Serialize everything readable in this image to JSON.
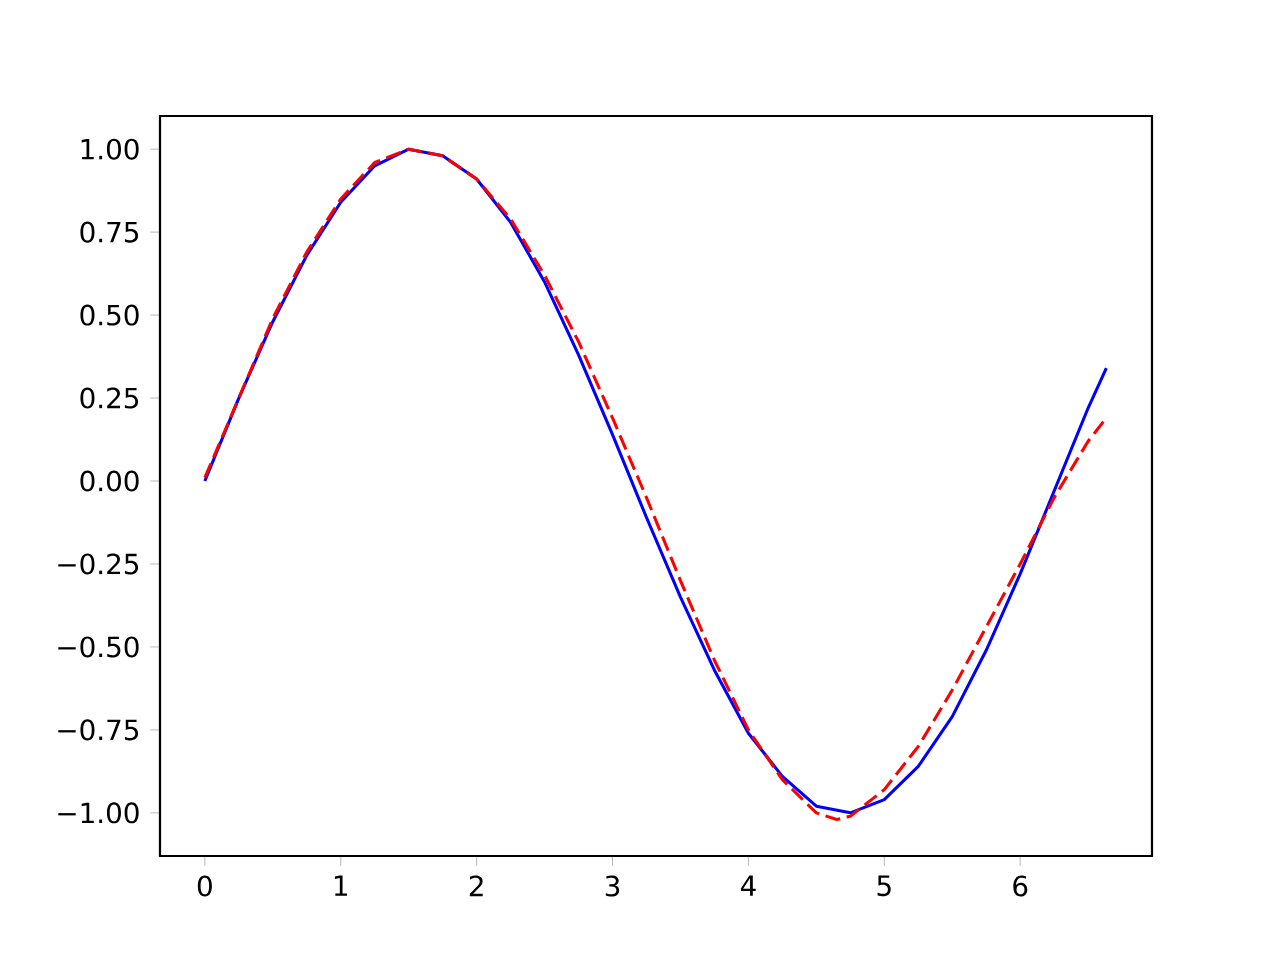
{
  "chart_data": {
    "type": "line",
    "xlim": [
      -0.33,
      6.97
    ],
    "ylim": [
      -1.13,
      1.1
    ],
    "xticks": [
      0,
      1,
      2,
      3,
      4,
      5,
      6
    ],
    "yticks": [
      {
        "value": -1,
        "label": "−1.00"
      },
      {
        "value": -0.75,
        "label": "−0.75"
      },
      {
        "value": -0.5,
        "label": "−0.50"
      },
      {
        "value": -0.25,
        "label": "−0.25"
      },
      {
        "value": 0,
        "label": "0.00"
      },
      {
        "value": 0.25,
        "label": "0.25"
      },
      {
        "value": 0.5,
        "label": "0.50"
      },
      {
        "value": 0.75,
        "label": "0.75"
      },
      {
        "value": 1,
        "label": "1.00"
      }
    ],
    "series": [
      {
        "color": "#0000ff",
        "line_style": "solid",
        "x": [
          0,
          0.25,
          0.5,
          0.75,
          1,
          1.25,
          1.5,
          1.75,
          2,
          2.25,
          2.5,
          2.75,
          3,
          3.25,
          3.5,
          3.75,
          4,
          4.25,
          4.5,
          4.75,
          5,
          5.25,
          5.5,
          5.75,
          6,
          6.25,
          6.5,
          6.634
        ],
        "values": [
          0,
          0.25,
          0.48,
          0.68,
          0.84,
          0.95,
          1.0,
          0.98,
          0.91,
          0.78,
          0.6,
          0.38,
          0.14,
          -0.11,
          -0.35,
          -0.57,
          -0.76,
          -0.89,
          -0.98,
          -1.0,
          -0.96,
          -0.86,
          -0.71,
          -0.51,
          -0.28,
          -0.03,
          0.22,
          0.34
        ]
      },
      {
        "color": "#ff0000",
        "line_style": "dashed",
        "x": [
          0,
          0.25,
          0.5,
          0.75,
          1,
          1.25,
          1.5,
          1.75,
          2,
          2.25,
          2.5,
          2.75,
          3,
          3.25,
          3.5,
          3.75,
          4,
          4.25,
          4.5,
          4.65,
          4.75,
          5,
          5.25,
          5.5,
          5.75,
          6,
          6.25,
          6.5,
          6.634
        ],
        "values": [
          0.01,
          0.25,
          0.49,
          0.69,
          0.85,
          0.96,
          1.0,
          0.98,
          0.91,
          0.79,
          0.62,
          0.42,
          0.19,
          -0.05,
          -0.3,
          -0.54,
          -0.75,
          -0.9,
          -1.0,
          -1.02,
          -1.01,
          -0.93,
          -0.8,
          -0.63,
          -0.44,
          -0.25,
          -0.05,
          0.12,
          0.19
        ]
      }
    ]
  }
}
